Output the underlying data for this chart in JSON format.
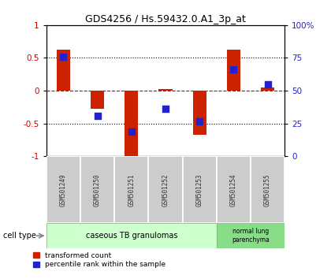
{
  "title": "GDS4256 / Hs.59432.0.A1_3p_at",
  "samples": [
    "GSM501249",
    "GSM501250",
    "GSM501251",
    "GSM501252",
    "GSM501253",
    "GSM501254",
    "GSM501255"
  ],
  "red_bars": [
    0.62,
    -0.27,
    -1.02,
    0.02,
    -0.67,
    0.62,
    0.05
  ],
  "blue_dots": [
    0.52,
    -0.38,
    -0.62,
    -0.27,
    -0.47,
    0.32,
    0.1
  ],
  "ylim": [
    -1.0,
    1.0
  ],
  "yticks_left": [
    -1,
    -0.5,
    0,
    0.5,
    1
  ],
  "ytick_labels_left": [
    "-1",
    "-0.5",
    "0",
    "0.5",
    "1"
  ],
  "right_pct_ticks": [
    0,
    25,
    50,
    75,
    100
  ],
  "right_pct_labels": [
    "0",
    "25",
    "50",
    "75",
    "100%"
  ],
  "dotted_lines": [
    -0.5,
    0.5
  ],
  "dotted_line_zero": 0.0,
  "group1_label": "caseous TB granulomas",
  "group1_indices": [
    0,
    1,
    2,
    3,
    4
  ],
  "group2_label": "normal lung\nparenchyma",
  "group2_indices": [
    5,
    6
  ],
  "cell_type_label": "cell type",
  "legend_red": "transformed count",
  "legend_blue": "percentile rank within the sample",
  "bar_color": "#cc2200",
  "dot_color": "#2222cc",
  "group1_bg": "#ccffcc",
  "group2_bg": "#88dd88",
  "tick_bg": "#cccccc",
  "zero_dashed_color": "#cc0000",
  "bar_width": 0.4,
  "dot_size": 40
}
